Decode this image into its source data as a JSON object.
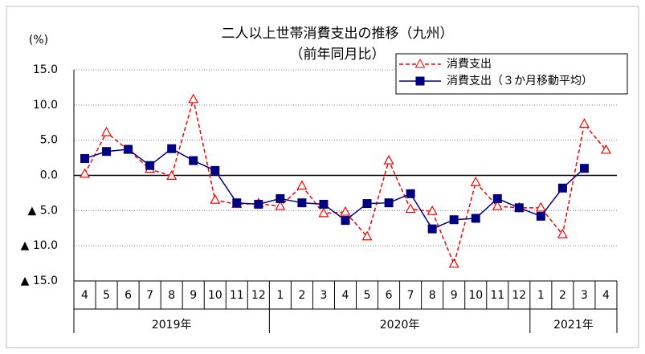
{
  "chart_data": {
    "type": "line",
    "title": "二人以上世帯消費支出の推移（九州）",
    "subtitle": "（前年同月比）",
    "y_unit": "(%)",
    "categories": [
      "4",
      "5",
      "6",
      "7",
      "8",
      "9",
      "10",
      "11",
      "12",
      "1",
      "2",
      "3",
      "4",
      "5",
      "6",
      "7",
      "8",
      "9",
      "10",
      "11",
      "12",
      "1",
      "2",
      "3",
      "4"
    ],
    "year_groups": [
      {
        "label": "2019年",
        "months": 9
      },
      {
        "label": "2020年",
        "months": 12
      },
      {
        "label": "2021年",
        "months": 4
      }
    ],
    "series": [
      {
        "name": "消費支出",
        "color": "#ff0000",
        "style": "dashed",
        "marker": "triangle",
        "values": [
          0.2,
          6.1,
          3.6,
          0.9,
          -0.1,
          10.8,
          -3.5,
          -4.1,
          -4.0,
          -4.4,
          -1.5,
          -5.4,
          -5.2,
          -8.7,
          2.1,
          -4.8,
          -5.1,
          -12.6,
          -1.0,
          -4.4,
          -4.6,
          -4.6,
          -8.4,
          7.3,
          3.6
        ]
      },
      {
        "name": "消費支出（３か月移動平均）",
        "color": "#000080",
        "style": "solid",
        "marker": "square",
        "values": [
          2.4,
          3.4,
          3.7,
          1.4,
          3.8,
          2.1,
          0.7,
          -3.9,
          -4.1,
          -3.3,
          -3.9,
          -4.1,
          -6.4,
          -4.0,
          -3.9,
          -2.6,
          -7.6,
          -6.3,
          -6.1,
          -3.3,
          -4.6,
          -5.8,
          -1.8,
          1.0,
          null
        ]
      }
    ],
    "ylim": [
      -15,
      15
    ],
    "yticks": [
      {
        "value": 15,
        "label": "15.0"
      },
      {
        "value": 10,
        "label": "10.0"
      },
      {
        "value": 5,
        "label": "5.0"
      },
      {
        "value": 0,
        "label": "0.0"
      },
      {
        "value": -5,
        "label": "▲ 5.0"
      },
      {
        "value": -10,
        "label": "▲ 10.0"
      },
      {
        "value": -15,
        "label": "▲ 15.0"
      }
    ],
    "grid": true
  }
}
